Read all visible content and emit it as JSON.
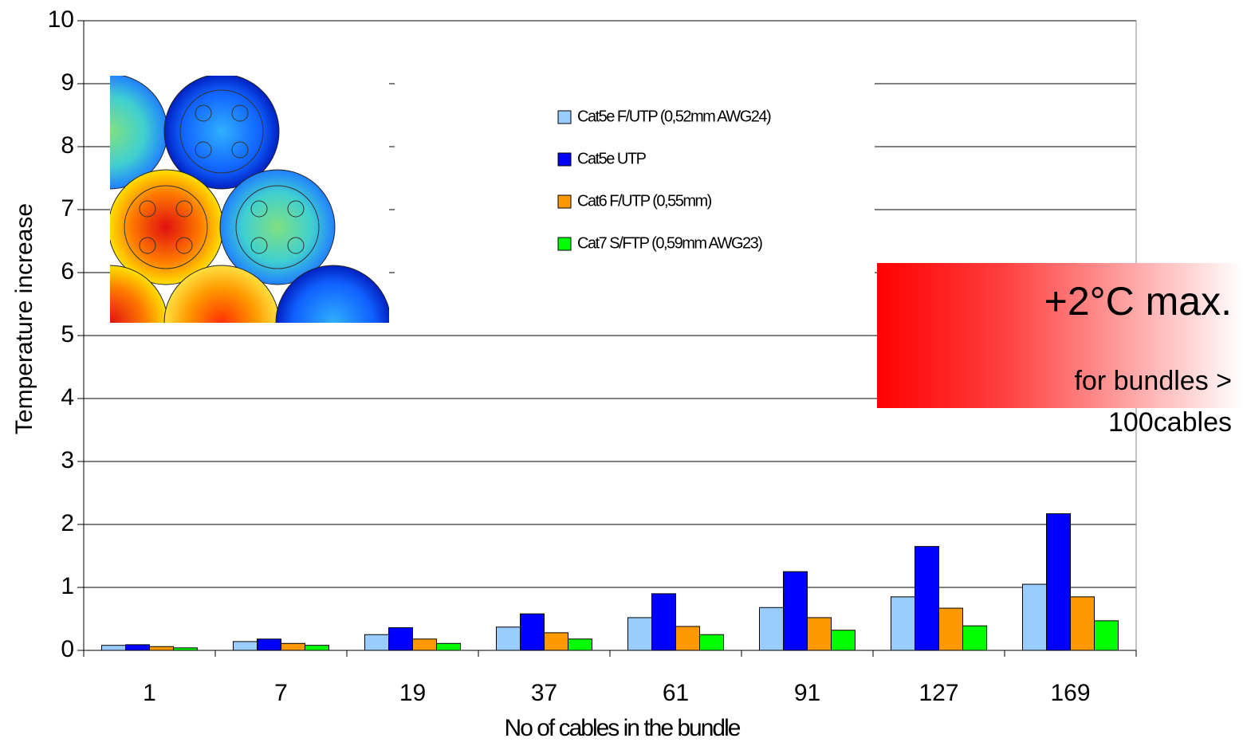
{
  "chart_data": {
    "type": "bar",
    "y_label": "Temperature increase",
    "x_label": "No of cables in the bundle",
    "categories": [
      "1",
      "7",
      "19",
      "37",
      "61",
      "91",
      "127",
      "169"
    ],
    "series": [
      {
        "name": "Cat5e  F/UTP (0,52mm AWG24)",
        "color": "#99ccff",
        "values": [
          0.08,
          0.14,
          0.25,
          0.37,
          0.52,
          0.68,
          0.85,
          1.05
        ]
      },
      {
        "name": "Cat5e UTP",
        "color": "#0000ff",
        "values": [
          0.09,
          0.18,
          0.36,
          0.58,
          0.9,
          1.25,
          1.65,
          2.17
        ]
      },
      {
        "name": "Cat6 F/UTP (0,55mm)",
        "color": "#ff9900",
        "values": [
          0.06,
          0.11,
          0.18,
          0.28,
          0.38,
          0.52,
          0.67,
          0.85
        ]
      },
      {
        "name": "Cat7 S/FTP (0,59mm AWG23)",
        "color": "#00ff00",
        "values": [
          0.04,
          0.08,
          0.11,
          0.18,
          0.25,
          0.32,
          0.39,
          0.47
        ]
      }
    ],
    "ylim": [
      0,
      10
    ],
    "yticks": [
      0,
      1,
      2,
      3,
      4,
      5,
      6,
      7,
      8,
      9,
      10
    ],
    "grid": true,
    "annotations": [
      "+2°C max.",
      "for bundles >",
      "100cables"
    ]
  }
}
